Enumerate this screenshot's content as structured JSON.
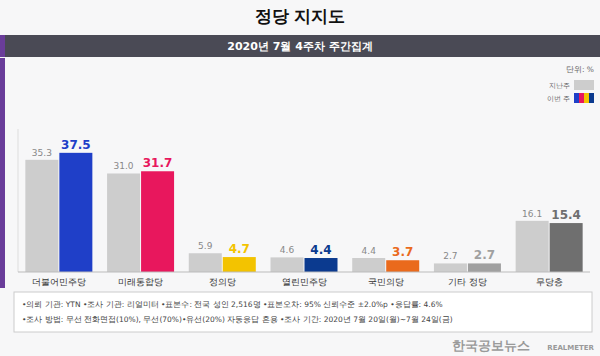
{
  "chart_data": {
    "type": "bar",
    "title": "정당 지지도",
    "subtitle": "2020년 7월 4주차 주간집계",
    "unit": "단위: %",
    "categories": [
      "더불어민주당",
      "미래통합당",
      "정의당",
      "열린민주당",
      "국민의당",
      "기타 정당",
      "무당층"
    ],
    "series": [
      {
        "name": "지난주",
        "color": "#cdcdcd",
        "values": [
          35.3,
          31.0,
          5.9,
          4.6,
          4.4,
          2.7,
          16.1
        ],
        "value_labels": [
          "35.3",
          "31.0",
          "5.9",
          "4.6",
          "4.4",
          "2.7",
          "16.1"
        ]
      },
      {
        "name": "이번 주",
        "colors": [
          "#1f3fc8",
          "#e8175d",
          "#f3c300",
          "#0b3a8f",
          "#ea6a1c",
          "#a0a0a0",
          "#6f6f6f"
        ],
        "values": [
          37.5,
          31.7,
          4.7,
          4.4,
          3.7,
          2.7,
          15.4
        ],
        "value_labels": [
          "37.5",
          "31.7",
          "4.7",
          "4.4",
          "3.7",
          "2.7",
          "15.4"
        ]
      }
    ],
    "ylim": [
      0,
      45
    ],
    "tick_labels": false,
    "grid": false,
    "data_labels": true,
    "legend": "upper right",
    "footnotes": [
      "•의뢰 기관: YTN  •조사 기관: 리얼미터  •표본수: 전국 성인 2,516명  •표본오차: 95% 신뢰수준 ±2.0%p  •응답률: 4.6%",
      "•조사 방법: 무선 전화면접(10%), 무선(70%)•유선(20%) 자동응답 혼용  •조사 기간: 2020년 7월 20일(월)~7월 24일(금)"
    ],
    "watermark": "한국공보뉴스",
    "credit": "REALMETER"
  }
}
